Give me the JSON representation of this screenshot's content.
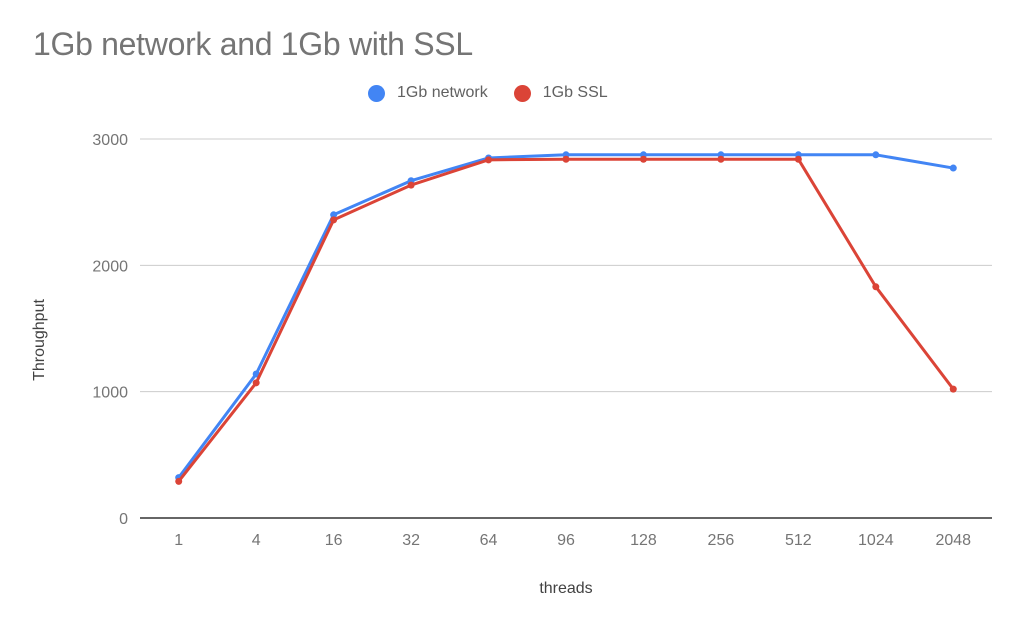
{
  "title": "1Gb network and 1Gb with SSL",
  "legend": [
    {
      "label": "1Gb network",
      "color": "#4285f4"
    },
    {
      "label": "1Gb SSL",
      "color": "#db4437"
    }
  ],
  "axes": {
    "xlabel": "threads",
    "ylabel": "Throughput",
    "yticks": [
      "0",
      "1000",
      "2000",
      "3000"
    ]
  },
  "chart_data": {
    "type": "line",
    "title": "1Gb network and 1Gb with SSL",
    "xlabel": "threads",
    "ylabel": "Throughput",
    "categories": [
      "1",
      "4",
      "16",
      "32",
      "64",
      "96",
      "128",
      "256",
      "512",
      "1024",
      "2048"
    ],
    "series": [
      {
        "name": "1Gb network",
        "color": "#4285f4",
        "values": [
          320,
          1140,
          2400,
          2670,
          2850,
          2875,
          2875,
          2875,
          2875,
          2875,
          2770
        ]
      },
      {
        "name": "1Gb SSL",
        "color": "#db4437",
        "values": [
          290,
          1070,
          2360,
          2635,
          2835,
          2840,
          2840,
          2840,
          2840,
          1830,
          1020
        ]
      }
    ],
    "ylim": [
      0,
      3000
    ],
    "yticks": [
      0,
      1000,
      2000,
      3000
    ],
    "grid": true,
    "legend_position": "top"
  }
}
